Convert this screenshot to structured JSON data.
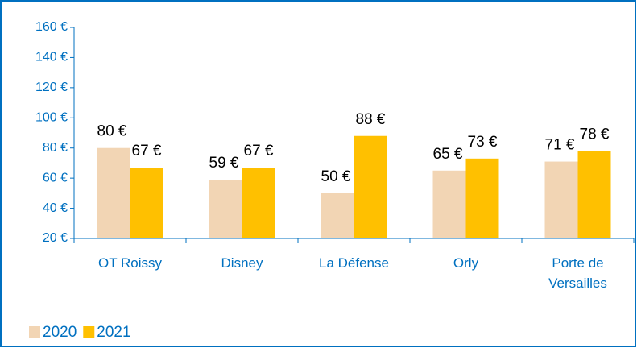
{
  "chart_data": {
    "type": "bar",
    "categories": [
      "OT Roissy",
      "Disney",
      "La Défense",
      "Orly",
      "Porte de Versailles"
    ],
    "series": [
      {
        "name": "2020",
        "color": "#f2d5b4",
        "values": [
          80,
          59,
          50,
          65,
          71
        ],
        "value_labels": [
          "80 €",
          "59 €",
          "50 €",
          "65 €",
          "71 €"
        ]
      },
      {
        "name": "2021",
        "color": "#ffc000",
        "values": [
          67,
          67,
          88,
          73,
          78
        ],
        "value_labels": [
          "67 €",
          "67 €",
          "88 €",
          "73 €",
          "78 €"
        ]
      }
    ],
    "ylim": [
      20,
      160
    ],
    "yticks": [
      {
        "value": 20,
        "label": "20 €"
      },
      {
        "value": 40,
        "label": "40 €"
      },
      {
        "value": 60,
        "label": "60 €"
      },
      {
        "value": 80,
        "label": "80 €"
      },
      {
        "value": 100,
        "label": "100 €"
      },
      {
        "value": 120,
        "label": "120 €"
      },
      {
        "value": 140,
        "label": "140 €"
      },
      {
        "value": 160,
        "label": "160 €"
      }
    ],
    "legend": "bottom-left"
  }
}
